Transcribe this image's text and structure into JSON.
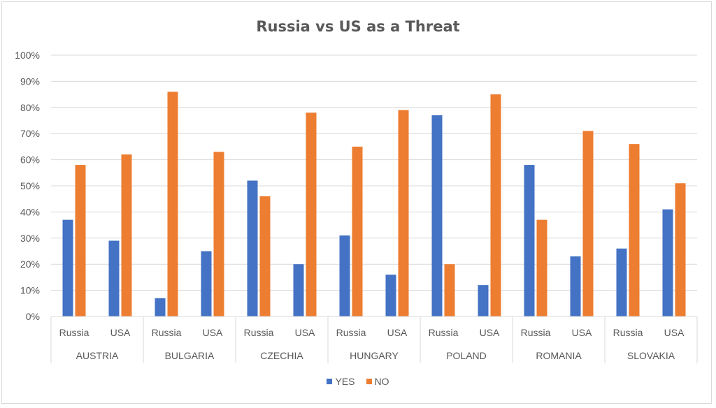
{
  "chart_data": {
    "type": "bar",
    "title": "Russia vs US as a Threat",
    "xlabel": "",
    "ylabel": "",
    "ylim": [
      0,
      100
    ],
    "yticks": [
      "0%",
      "10%",
      "20%",
      "30%",
      "40%",
      "50%",
      "60%",
      "70%",
      "80%",
      "90%",
      "100%"
    ],
    "groups": [
      "AUSTRIA",
      "BULGARIA",
      "CZECHIA",
      "HUNGARY",
      "POLAND",
      "ROMANIA",
      "SLOVAKIA"
    ],
    "subcategories": [
      "Russia",
      "USA"
    ],
    "grid": true,
    "legend_position": "bottom",
    "series": [
      {
        "name": "YES",
        "color": "#4472c4",
        "values": [
          37,
          29,
          7,
          25,
          52,
          20,
          31,
          16,
          77,
          12,
          58,
          23,
          26,
          41
        ]
      },
      {
        "name": "NO",
        "color": "#ed7d31",
        "values": [
          58,
          62,
          86,
          63,
          46,
          78,
          65,
          79,
          20,
          85,
          37,
          71,
          66,
          51
        ]
      }
    ]
  }
}
